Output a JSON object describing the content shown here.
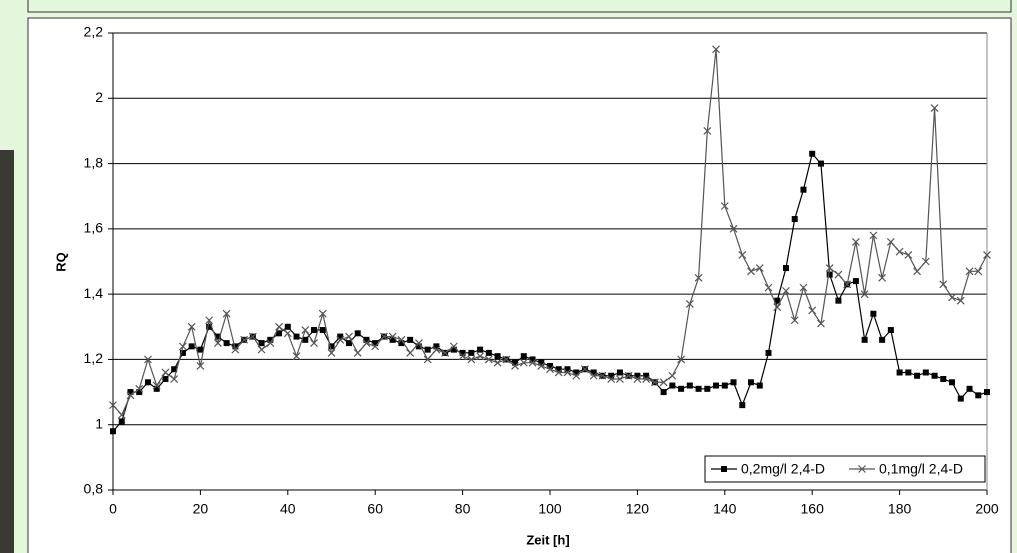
{
  "chart_data": {
    "type": "line",
    "x_label": "Zeit [h]",
    "y_label": "RQ",
    "x": [
      0,
      2,
      4,
      6,
      8,
      10,
      12,
      14,
      16,
      18,
      20,
      22,
      24,
      26,
      28,
      30,
      32,
      34,
      36,
      38,
      40,
      42,
      44,
      46,
      48,
      50,
      52,
      54,
      56,
      58,
      60,
      62,
      64,
      66,
      68,
      70,
      72,
      74,
      76,
      78,
      80,
      82,
      84,
      86,
      88,
      90,
      92,
      94,
      96,
      98,
      100,
      102,
      104,
      106,
      108,
      110,
      112,
      114,
      116,
      118,
      120,
      122,
      124,
      126,
      128,
      130,
      132,
      134,
      136,
      138,
      140,
      142,
      144,
      146,
      148,
      150,
      152,
      154,
      156,
      158,
      160,
      162,
      164,
      166,
      168,
      170,
      172,
      174,
      176,
      178,
      180,
      182,
      184,
      186,
      188,
      190,
      192,
      194,
      196,
      198,
      200
    ],
    "series": [
      {
        "name": "0,2mg/l 2,4-D",
        "color": "#000000",
        "marker": "square",
        "values": [
          0.98,
          1.01,
          1.1,
          1.1,
          1.13,
          1.11,
          1.14,
          1.17,
          1.22,
          1.24,
          1.23,
          1.3,
          1.27,
          1.25,
          1.24,
          1.26,
          1.27,
          1.25,
          1.26,
          1.28,
          1.3,
          1.27,
          1.26,
          1.29,
          1.29,
          1.24,
          1.27,
          1.25,
          1.28,
          1.26,
          1.25,
          1.27,
          1.26,
          1.25,
          1.26,
          1.24,
          1.23,
          1.24,
          1.22,
          1.23,
          1.22,
          1.22,
          1.23,
          1.22,
          1.21,
          1.2,
          1.19,
          1.21,
          1.2,
          1.19,
          1.18,
          1.17,
          1.17,
          1.16,
          1.17,
          1.16,
          1.15,
          1.15,
          1.16,
          1.15,
          1.15,
          1.15,
          1.13,
          1.1,
          1.12,
          1.11,
          1.12,
          1.11,
          1.11,
          1.12,
          1.12,
          1.13,
          1.06,
          1.13,
          1.12,
          1.22,
          1.38,
          1.48,
          1.63,
          1.72,
          1.83,
          1.8,
          1.46,
          1.38,
          1.43,
          1.44,
          1.26,
          1.34,
          1.26,
          1.29,
          1.16,
          1.16,
          1.15,
          1.16,
          1.15,
          1.14,
          1.13,
          1.08,
          1.11,
          1.09,
          1.1
        ]
      },
      {
        "name": "0,1mg/l 2,4-D",
        "color": "#555555",
        "marker": "x",
        "values": [
          1.06,
          1.03,
          1.09,
          1.11,
          1.2,
          1.12,
          1.16,
          1.14,
          1.24,
          1.3,
          1.18,
          1.32,
          1.25,
          1.34,
          1.23,
          1.26,
          1.27,
          1.23,
          1.25,
          1.3,
          1.28,
          1.21,
          1.29,
          1.25,
          1.34,
          1.22,
          1.26,
          1.27,
          1.22,
          1.25,
          1.24,
          1.27,
          1.27,
          1.26,
          1.22,
          1.25,
          1.2,
          1.23,
          1.22,
          1.24,
          1.21,
          1.2,
          1.21,
          1.2,
          1.19,
          1.2,
          1.18,
          1.19,
          1.19,
          1.18,
          1.17,
          1.16,
          1.16,
          1.15,
          1.17,
          1.15,
          1.15,
          1.14,
          1.14,
          1.15,
          1.14,
          1.14,
          1.13,
          1.13,
          1.15,
          1.2,
          1.37,
          1.45,
          1.9,
          2.15,
          1.67,
          1.6,
          1.52,
          1.47,
          1.48,
          1.42,
          1.36,
          1.41,
          1.32,
          1.42,
          1.35,
          1.31,
          1.48,
          1.46,
          1.43,
          1.56,
          1.4,
          1.58,
          1.45,
          1.56,
          1.53,
          1.52,
          1.47,
          1.5,
          1.97,
          1.43,
          1.39,
          1.38,
          1.47,
          1.47,
          1.52
        ]
      }
    ],
    "xlim": [
      0,
      200
    ],
    "xticks": [
      0,
      20,
      40,
      60,
      80,
      100,
      120,
      140,
      160,
      180,
      200
    ],
    "ylim": [
      0.8,
      2.2
    ],
    "yticks": [
      {
        "value": 0.8,
        "label": "0,8"
      },
      1,
      {
        "value": 1.2,
        "label": "1,2"
      },
      {
        "value": 1.4,
        "label": "1,4"
      },
      {
        "value": 1.6,
        "label": "1,6"
      },
      {
        "value": 1.8,
        "label": "1,8"
      },
      2,
      {
        "value": 2.2,
        "label": "2,2"
      }
    ],
    "grid": true,
    "legend": "lower right"
  }
}
